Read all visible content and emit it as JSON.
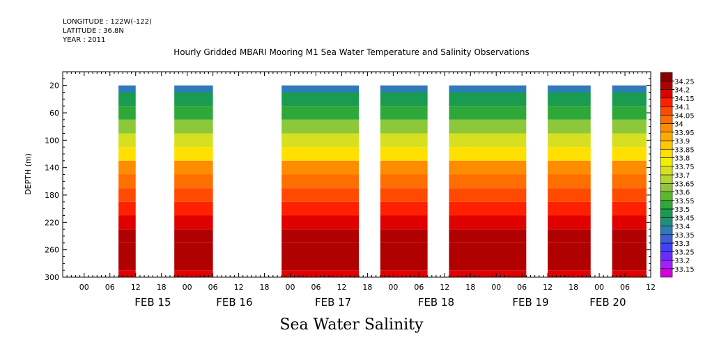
{
  "header": {
    "longitude": "LONGITUDE : 122W(-122)",
    "latitude": "LATITUDE : 36.8N",
    "year": "YEAR : 2011"
  },
  "chart_data": {
    "type": "heatmap",
    "title": "Hourly Gridded MBARI Mooring M1 Sea Water Temperature and Salinity Observations",
    "xlabel": "Sea Water Salinity",
    "ylabel": "DEPTH (m)",
    "x_hour_ticks": [
      "00",
      "06",
      "12",
      "18",
      "00",
      "06",
      "12",
      "18",
      "00",
      "06",
      "12",
      "18",
      "00",
      "06",
      "12",
      "18",
      "00",
      "06",
      "12",
      "18",
      "00",
      "06",
      "12"
    ],
    "x_date_labels": [
      {
        "label": "FEB 15",
        "hours_after_feb15_00": 16
      },
      {
        "label": "FEB 16",
        "hours_after_feb15_00": 35
      },
      {
        "label": "FEB 17",
        "hours_after_feb15_00": 58
      },
      {
        "label": "FEB 18",
        "hours_after_feb15_00": 82
      },
      {
        "label": "FEB 19",
        "hours_after_feb15_00": 104
      },
      {
        "label": "FEB 20",
        "hours_after_feb15_00": 122
      }
    ],
    "x_range_hours": [
      -5,
      132
    ],
    "y_ticks": [
      20,
      60,
      100,
      140,
      180,
      220,
      260,
      300
    ],
    "y_range": [
      300,
      0
    ],
    "data_segments_hours": [
      [
        8,
        12
      ],
      [
        21,
        30
      ],
      [
        46,
        64
      ],
      [
        69,
        80
      ],
      [
        85,
        103
      ],
      [
        108,
        118
      ],
      [
        123,
        131
      ]
    ],
    "colorbar_levels": [
      33.15,
      33.2,
      33.25,
      33.3,
      33.35,
      33.4,
      33.45,
      33.5,
      33.55,
      33.6,
      33.65,
      33.7,
      33.75,
      33.8,
      33.85,
      33.9,
      33.95,
      34,
      34.05,
      34.1,
      34.15,
      34.2,
      34.25
    ],
    "colorbar_colors": [
      "#d600e0",
      "#a020ff",
      "#6a2cff",
      "#4040ff",
      "#3d5fd6",
      "#2f7ab8",
      "#1f8f7a",
      "#1a9c50",
      "#2fa83a",
      "#5cb82e",
      "#8cc83a",
      "#b4d52e",
      "#d6e020",
      "#f2f000",
      "#ffe000",
      "#ffc800",
      "#ffaa00",
      "#ff8c00",
      "#ff6e00",
      "#ff4a00",
      "#ff2000",
      "#e00000",
      "#b00000",
      "#8a0000"
    ],
    "depth_profile": [
      {
        "depth": 20,
        "value": 33.37
      },
      {
        "depth": 40,
        "value": 33.45
      },
      {
        "depth": 60,
        "value": 33.53
      },
      {
        "depth": 80,
        "value": 33.62
      },
      {
        "depth": 100,
        "value": 33.72
      },
      {
        "depth": 120,
        "value": 33.84
      },
      {
        "depth": 140,
        "value": 33.96
      },
      {
        "depth": 160,
        "value": 34.04
      },
      {
        "depth": 180,
        "value": 34.07
      },
      {
        "depth": 200,
        "value": 34.12
      },
      {
        "depth": 220,
        "value": 34.17
      },
      {
        "depth": 240,
        "value": 34.21
      },
      {
        "depth": 260,
        "value": 34.24
      },
      {
        "depth": 280,
        "value": 34.21
      },
      {
        "depth": 300,
        "value": 34.18
      }
    ]
  }
}
